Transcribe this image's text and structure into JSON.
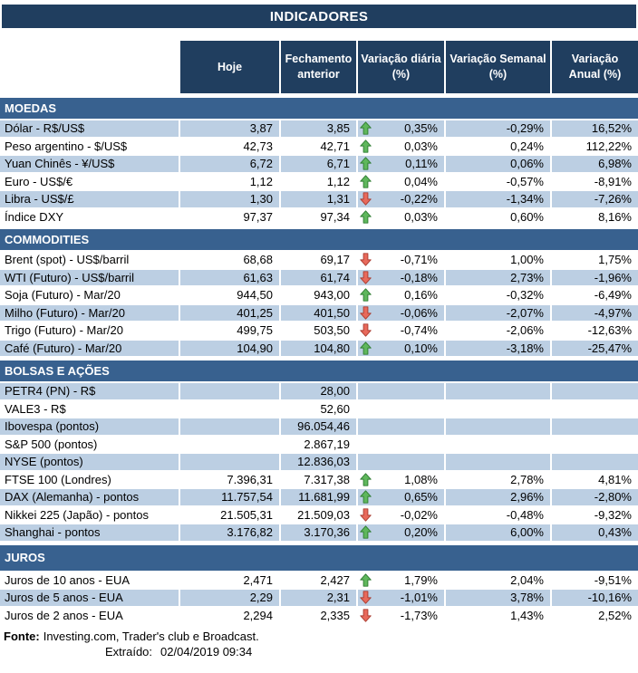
{
  "title": "INDICADORES",
  "columns": [
    "Hoje",
    "Fechamento anterior",
    "Variação diária (%)",
    "Variação Semanal (%)",
    "Variação Anual (%)"
  ],
  "colors": {
    "navy": "#203E5F",
    "section_blue": "#38618F",
    "row_blue": "#BCCFE3",
    "up_arrow_fill": "#5FB75C",
    "up_arrow_border": "#2F7D32",
    "down_arrow_fill": "#E8695B",
    "down_arrow_border": "#AA3C30"
  },
  "sections": [
    {
      "name": "MOEDAS",
      "rows": [
        {
          "label": "Dólar - R$/US$",
          "hoje": "3,87",
          "fechamento": "3,85",
          "arrow": "up",
          "var_diaria": "0,35%",
          "var_semanal": "-0,29%",
          "var_anual": "16,52%",
          "stripe": "blue"
        },
        {
          "label": "Peso argentino - $/US$",
          "hoje": "42,73",
          "fechamento": "42,71",
          "arrow": "up",
          "var_diaria": "0,03%",
          "var_semanal": "0,24%",
          "var_anual": "112,22%",
          "stripe": "white"
        },
        {
          "label": "Yuan Chinês - ¥/US$",
          "hoje": "6,72",
          "fechamento": "6,71",
          "arrow": "up",
          "var_diaria": "0,11%",
          "var_semanal": "0,06%",
          "var_anual": "6,98%",
          "stripe": "blue"
        },
        {
          "label": "Euro - US$/€",
          "hoje": "1,12",
          "fechamento": "1,12",
          "arrow": "up",
          "var_diaria": "0,04%",
          "var_semanal": "-0,57%",
          "var_anual": "-8,91%",
          "stripe": "white"
        },
        {
          "label": "Libra - US$/£",
          "hoje": "1,30",
          "fechamento": "1,31",
          "arrow": "down",
          "var_diaria": "-0,22%",
          "var_semanal": "-1,34%",
          "var_anual": "-7,26%",
          "stripe": "blue"
        },
        {
          "label": "Índice DXY",
          "hoje": "97,37",
          "fechamento": "97,34",
          "arrow": "up",
          "var_diaria": "0,03%",
          "var_semanal": "0,60%",
          "var_anual": "8,16%",
          "stripe": "white"
        }
      ]
    },
    {
      "name": "COMMODITIES",
      "rows": [
        {
          "label": "Brent (spot) - US$/barril",
          "hoje": "68,68",
          "fechamento": "69,17",
          "arrow": "down",
          "var_diaria": "-0,71%",
          "var_semanal": "1,00%",
          "var_anual": "1,75%",
          "stripe": "white"
        },
        {
          "label": "WTI (Futuro) - US$/barril",
          "hoje": "61,63",
          "fechamento": "61,74",
          "arrow": "down",
          "var_diaria": "-0,18%",
          "var_semanal": "2,73%",
          "var_anual": "-1,96%",
          "stripe": "blue"
        },
        {
          "label": "Soja (Futuro) - Mar/20",
          "hoje": "944,50",
          "fechamento": "943,00",
          "arrow": "up",
          "var_diaria": "0,16%",
          "var_semanal": "-0,32%",
          "var_anual": "-6,49%",
          "stripe": "white"
        },
        {
          "label": "Milho (Futuro) - Mar/20",
          "hoje": "401,25",
          "fechamento": "401,50",
          "arrow": "down",
          "var_diaria": "-0,06%",
          "var_semanal": "-2,07%",
          "var_anual": "-4,97%",
          "stripe": "blue"
        },
        {
          "label": "Trigo (Futuro) - Mar/20",
          "hoje": "499,75",
          "fechamento": "503,50",
          "arrow": "down",
          "var_diaria": "-0,74%",
          "var_semanal": "-2,06%",
          "var_anual": "-12,63%",
          "stripe": "white"
        },
        {
          "label": "Café (Futuro) - Mar/20",
          "hoje": "104,90",
          "fechamento": "104,80",
          "arrow": "up",
          "var_diaria": "0,10%",
          "var_semanal": "-3,18%",
          "var_anual": "-25,47%",
          "stripe": "blue"
        }
      ]
    },
    {
      "name": "BOLSAS E AÇÕES",
      "rows": [
        {
          "label": "PETR4 (PN) - R$",
          "hoje": "",
          "fechamento": "28,00",
          "arrow": "",
          "var_diaria": "",
          "var_semanal": "",
          "var_anual": "",
          "stripe": "blue"
        },
        {
          "label": "VALE3 - R$",
          "hoje": "",
          "fechamento": "52,60",
          "arrow": "",
          "var_diaria": "",
          "var_semanal": "",
          "var_anual": "",
          "stripe": "white"
        },
        {
          "label": "Ibovespa (pontos)",
          "hoje": "",
          "fechamento": "96.054,46",
          "arrow": "",
          "var_diaria": "",
          "var_semanal": "",
          "var_anual": "",
          "stripe": "blue"
        },
        {
          "label": "S&P 500 (pontos)",
          "hoje": "",
          "fechamento": "2.867,19",
          "arrow": "",
          "var_diaria": "",
          "var_semanal": "",
          "var_anual": "",
          "stripe": "white"
        },
        {
          "label": "NYSE (pontos)",
          "hoje": "",
          "fechamento": "12.836,03",
          "arrow": "",
          "var_diaria": "",
          "var_semanal": "",
          "var_anual": "",
          "stripe": "blue"
        },
        {
          "label": "FTSE 100 (Londres)",
          "hoje": "7.396,31",
          "fechamento": "7.317,38",
          "arrow": "up",
          "var_diaria": "1,08%",
          "var_semanal": "2,78%",
          "var_anual": "4,81%",
          "stripe": "white"
        },
        {
          "label": "DAX (Alemanha) - pontos",
          "hoje": "11.757,54",
          "fechamento": "11.681,99",
          "arrow": "up",
          "var_diaria": "0,65%",
          "var_semanal": "2,96%",
          "var_anual": "-2,80%",
          "stripe": "blue"
        },
        {
          "label": "Nikkei 225 (Japão) - pontos",
          "hoje": "21.505,31",
          "fechamento": "21.509,03",
          "arrow": "down",
          "var_diaria": "-0,02%",
          "var_semanal": "-0,48%",
          "var_anual": "-9,32%",
          "stripe": "white"
        },
        {
          "label": "Shanghai - pontos",
          "hoje": "3.176,82",
          "fechamento": "3.170,36",
          "arrow": "up",
          "var_diaria": "0,20%",
          "var_semanal": "6,00%",
          "var_anual": "0,43%",
          "stripe": "blue"
        }
      ]
    },
    {
      "name": "JUROS",
      "rows": [
        {
          "label": "Juros de 10 anos - EUA",
          "hoje": "2,471",
          "fechamento": "2,427",
          "arrow": "up",
          "var_diaria": "1,79%",
          "var_semanal": "2,04%",
          "var_anual": "-9,51%",
          "stripe": "white"
        },
        {
          "label": "Juros de 5 anos - EUA",
          "hoje": "2,29",
          "fechamento": "2,31",
          "arrow": "down",
          "var_diaria": "-1,01%",
          "var_semanal": "3,78%",
          "var_anual": "-10,16%",
          "stripe": "blue"
        },
        {
          "label": "Juros de 2 anos - EUA",
          "hoje": "2,294",
          "fechamento": "2,335",
          "arrow": "down",
          "var_diaria": "-1,73%",
          "var_semanal": "1,43%",
          "var_anual": "2,52%",
          "stripe": "white"
        }
      ]
    }
  ],
  "footer": {
    "fonte_label": "Fonte:",
    "fonte_text": "Investing.com, Trader's club e Broadcast.",
    "extraido_label": "Extraído:",
    "extraido_value": "02/04/2019 09:34"
  }
}
